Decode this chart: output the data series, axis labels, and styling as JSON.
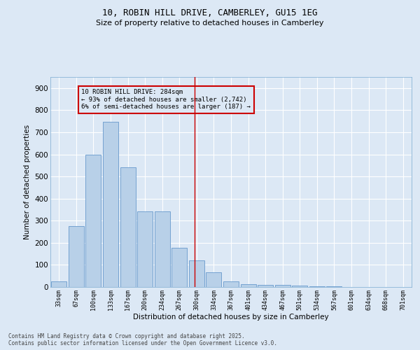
{
  "title1": "10, ROBIN HILL DRIVE, CAMBERLEY, GU15 1EG",
  "title2": "Size of property relative to detached houses in Camberley",
  "xlabel": "Distribution of detached houses by size in Camberley",
  "ylabel": "Number of detached properties",
  "categories": [
    "33sqm",
    "67sqm",
    "100sqm",
    "133sqm",
    "167sqm",
    "200sqm",
    "234sqm",
    "267sqm",
    "300sqm",
    "334sqm",
    "367sqm",
    "401sqm",
    "434sqm",
    "467sqm",
    "501sqm",
    "534sqm",
    "567sqm",
    "601sqm",
    "634sqm",
    "668sqm",
    "701sqm"
  ],
  "values": [
    25,
    275,
    598,
    748,
    540,
    342,
    342,
    178,
    120,
    65,
    25,
    13,
    10,
    8,
    5,
    3,
    2,
    0,
    1,
    0,
    0
  ],
  "bar_color": "#b8d0e8",
  "bar_edge_color": "#6699cc",
  "vline_color": "#cc0000",
  "annotation_title": "10 ROBIN HILL DRIVE: 284sqm",
  "annotation_line1": "← 93% of detached houses are smaller (2,742)",
  "annotation_line2": "6% of semi-detached houses are larger (187) →",
  "annotation_box_color": "#cc0000",
  "ylim": [
    0,
    950
  ],
  "yticks": [
    0,
    100,
    200,
    300,
    400,
    500,
    600,
    700,
    800,
    900
  ],
  "bg_color": "#dce8f5",
  "grid_color": "#ffffff",
  "footer1": "Contains HM Land Registry data © Crown copyright and database right 2025.",
  "footer2": "Contains public sector information licensed under the Open Government Licence v3.0."
}
